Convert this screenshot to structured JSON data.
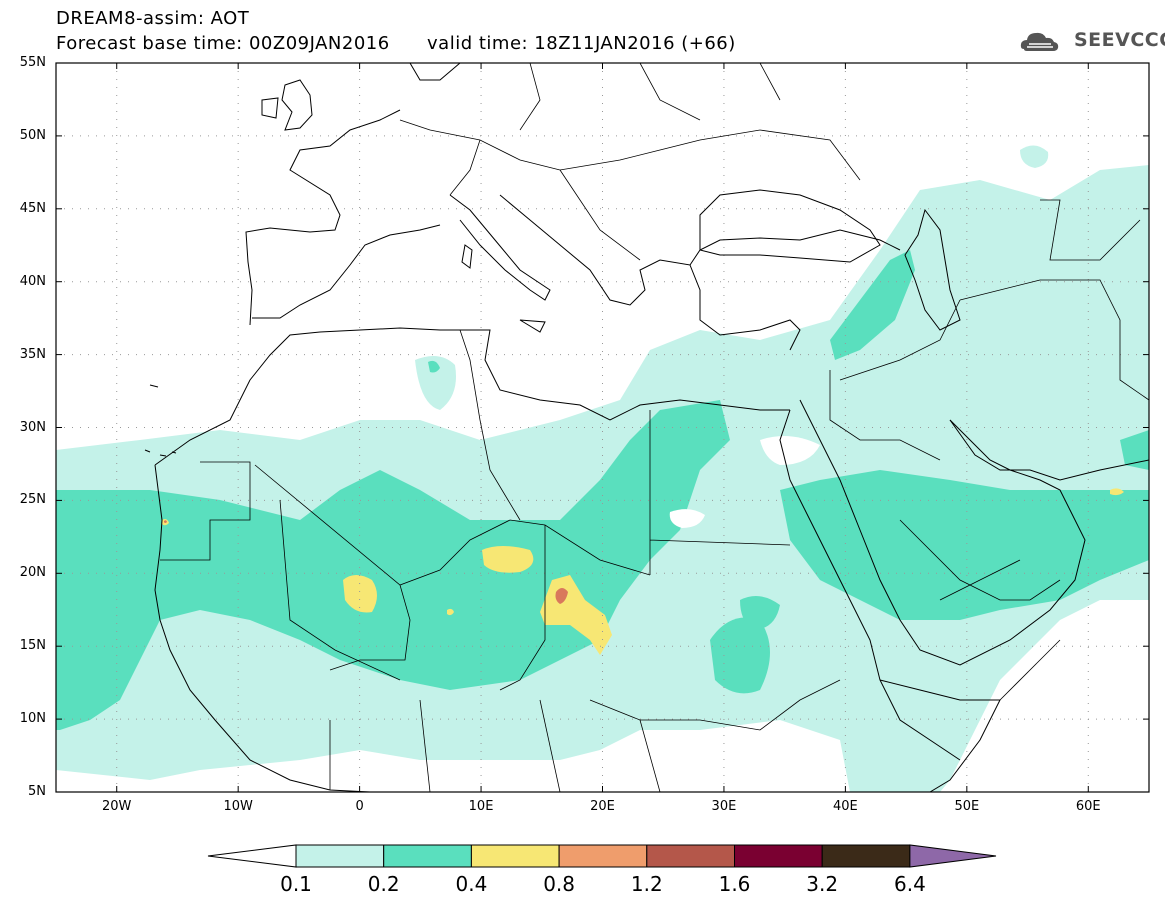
{
  "title": {
    "line1": "DREAM8-assim: AOT",
    "line2": "Forecast base time: 00Z09JAN2016      valid time: 18Z11JAN2016 (+66)"
  },
  "logo": {
    "text": "SEEVCCC",
    "icon": "cloud-icon"
  },
  "map": {
    "projection": "cylindrical",
    "lon_range": [
      -25,
      65
    ],
    "lat_range": [
      5,
      55
    ],
    "grid": "dotted",
    "lat_ticks": [
      "55N",
      "50N",
      "45N",
      "40N",
      "35N",
      "30N",
      "25N",
      "20N",
      "15N",
      "10N",
      "5N"
    ],
    "lat_values": [
      55,
      50,
      45,
      40,
      35,
      30,
      25,
      20,
      15,
      10,
      5
    ],
    "lon_ticks": [
      "20W",
      "10W",
      "0",
      "10E",
      "20E",
      "30E",
      "40E",
      "50E",
      "60E"
    ],
    "lon_values": [
      -20,
      -10,
      0,
      10,
      20,
      30,
      40,
      50,
      60
    ]
  },
  "colorbar": {
    "labels": [
      "0.1",
      "0.2",
      "0.4",
      "0.8",
      "1.2",
      "1.6",
      "3.2",
      "6.4"
    ],
    "colors": [
      "#c4f2e9",
      "#5adfbe",
      "#f7e774",
      "#ef9d6c",
      "#b4574a",
      "#7a0031",
      "#3b2a18"
    ],
    "under_color": "#ffffff",
    "over_color": "#8e68a8"
  }
}
